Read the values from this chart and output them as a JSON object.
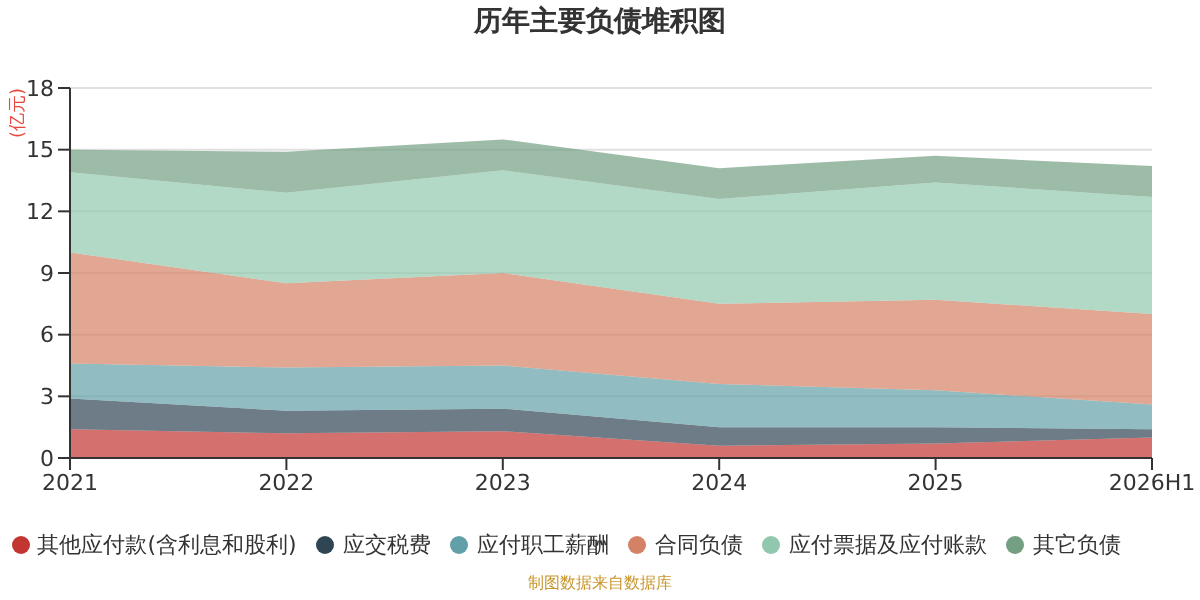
{
  "chart_data": {
    "type": "area",
    "stacked": true,
    "title": "历年主要负债堆积图",
    "ylabel": "(亿元)",
    "categories": [
      "2021",
      "2022",
      "2023",
      "2024",
      "2025",
      "2026H1"
    ],
    "series": [
      {
        "name": "其他应付款(含利息和股利)",
        "color": "#c23531",
        "values": [
          1.4,
          1.2,
          1.3,
          0.6,
          0.7,
          1.0
        ]
      },
      {
        "name": "应交税费",
        "color": "#2f4554",
        "values": [
          1.5,
          1.1,
          1.1,
          0.9,
          0.8,
          0.4
        ]
      },
      {
        "name": "应付职工薪酬",
        "color": "#61a0a8",
        "values": [
          1.7,
          2.1,
          2.1,
          2.1,
          1.8,
          1.2
        ]
      },
      {
        "name": "合同负债",
        "color": "#d48265",
        "values": [
          5.4,
          4.1,
          4.5,
          3.9,
          4.4,
          4.4
        ]
      },
      {
        "name": "应付票据及应付账款",
        "color": "#91c7ae",
        "values": [
          3.9,
          4.4,
          5.0,
          5.1,
          5.7,
          5.7
        ]
      },
      {
        "name": "其它负债",
        "color": "#749f83",
        "values": [
          1.1,
          2.0,
          1.5,
          1.5,
          1.3,
          1.5
        ]
      }
    ],
    "ylim": [
      0,
      18
    ],
    "yticks": [
      0,
      3,
      6,
      9,
      12,
      15,
      18
    ],
    "grid": "y",
    "legend": "bottom",
    "annotations": [
      "制图数据来自数据库"
    ]
  }
}
